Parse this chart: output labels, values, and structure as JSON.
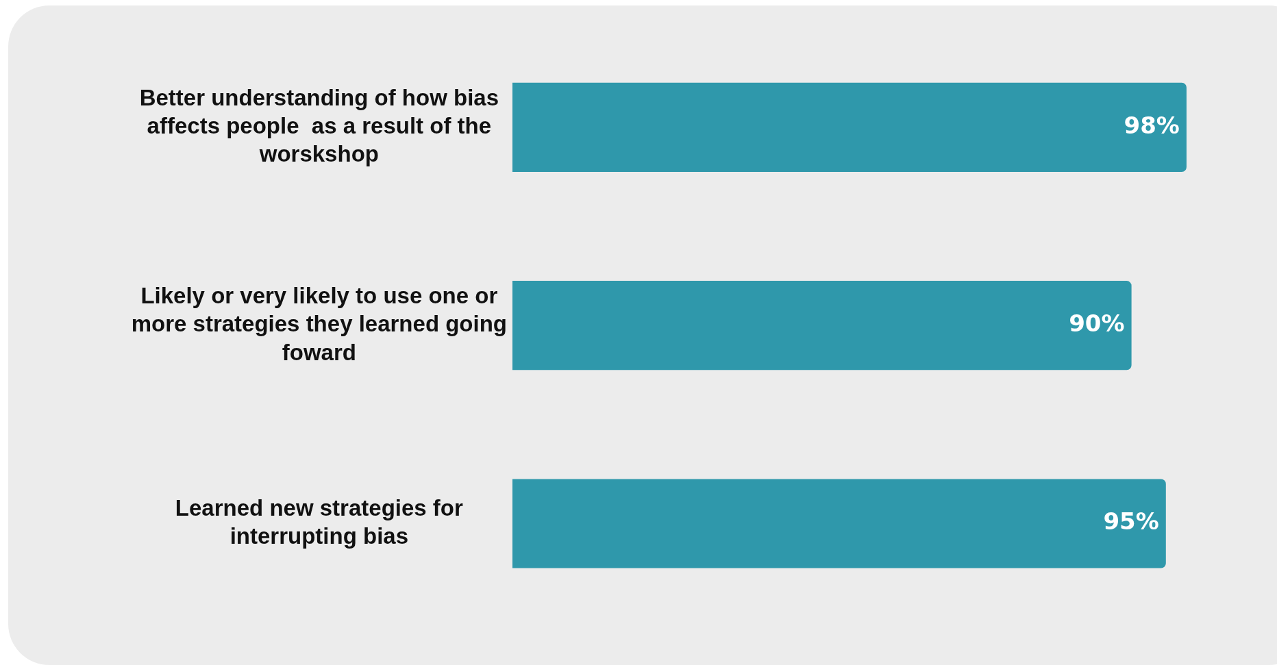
{
  "chart_data": {
    "type": "bar",
    "orientation": "horizontal",
    "categories": [
      "Better understanding of how bias affects people  as a result of the worskshop",
      "Likely or very likely to use one or more strategies they learned going foward",
      "Learned new strategies for interrupting bias"
    ],
    "values": [
      98,
      90,
      95
    ],
    "value_labels": [
      "98%",
      "90%",
      "95%"
    ],
    "color": "#2f98ab"
  }
}
